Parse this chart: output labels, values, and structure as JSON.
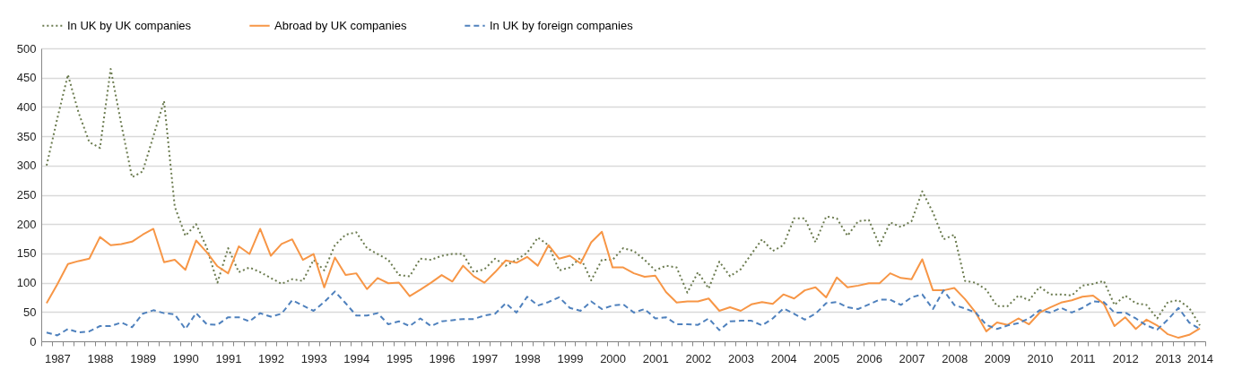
{
  "chart_data": {
    "type": "line",
    "categories": [
      null,
      "1987",
      null,
      null,
      null,
      "1988",
      null,
      null,
      null,
      "1989",
      null,
      null,
      null,
      "1990",
      null,
      null,
      null,
      "1991",
      null,
      null,
      null,
      "1992",
      null,
      null,
      null,
      "1993",
      null,
      null,
      null,
      "1994",
      null,
      null,
      null,
      "1995",
      null,
      null,
      null,
      "1996",
      null,
      null,
      null,
      "1997",
      null,
      null,
      null,
      "1998",
      null,
      null,
      null,
      "1999",
      null,
      null,
      null,
      "2000",
      null,
      null,
      null,
      "2001",
      null,
      null,
      null,
      "2002",
      null,
      null,
      null,
      "2003",
      null,
      null,
      null,
      "2004",
      null,
      null,
      null,
      "2005",
      null,
      null,
      null,
      "2006",
      null,
      null,
      null,
      "2007",
      null,
      null,
      null,
      "2008",
      null,
      null,
      null,
      "2009",
      null,
      null,
      null,
      "2010",
      null,
      null,
      null,
      "2011",
      null,
      null,
      null,
      "2012",
      null,
      null,
      null,
      "2013",
      null,
      null,
      "2014"
    ],
    "ylim": [
      0,
      500
    ],
    "yticks": [
      0,
      50,
      100,
      150,
      200,
      250,
      300,
      350,
      400,
      450,
      500
    ],
    "grid": "y",
    "legend": "top",
    "marker": "none",
    "series": [
      {
        "name": "In UK by UK companies",
        "color": "#6b7b4f",
        "line_style": "dotted",
        "values": [
          300,
          380,
          455,
          390,
          340,
          330,
          465,
          370,
          280,
          290,
          350,
          410,
          230,
          180,
          200,
          160,
          100,
          159,
          118,
          126,
          118,
          108,
          98,
          106,
          103,
          139,
          121,
          164,
          182,
          186,
          159,
          149,
          139,
          113,
          111,
          141,
          139,
          146,
          149,
          149,
          118,
          123,
          141,
          129,
          139,
          151,
          177,
          164,
          121,
          126,
          143,
          104,
          139,
          139,
          159,
          154,
          139,
          121,
          129,
          126,
          83,
          118,
          90,
          136,
          111,
          123,
          149,
          174,
          154,
          164,
          210,
          210,
          169,
          213,
          210,
          180,
          205,
          207,
          164,
          203,
          195,
          205,
          256,
          220,
          174,
          182,
          103,
          100,
          88,
          60,
          60,
          78,
          70,
          93,
          80,
          80,
          78,
          95,
          98,
          103,
          62,
          78,
          65,
          62,
          39,
          67,
          70,
          57,
          27
        ]
      },
      {
        "name": "Abroad by UK companies",
        "color": "#f79646",
        "line_style": "solid",
        "values": [
          65,
          97,
          132,
          137,
          141,
          178,
          164,
          166,
          170,
          182,
          192,
          135,
          139,
          122,
          172,
          152,
          128,
          116,
          162,
          149,
          192,
          146,
          166,
          174,
          139,
          149,
          92,
          143,
          113,
          116,
          89,
          108,
          99,
          100,
          77,
          88,
          100,
          113,
          102,
          129,
          111,
          100,
          118,
          138,
          134,
          144,
          129,
          164,
          141,
          146,
          133,
          169,
          187,
          126,
          126,
          116,
          110,
          112,
          84,
          66,
          68,
          68,
          73,
          52,
          58,
          52,
          63,
          67,
          64,
          80,
          73,
          87,
          92,
          75,
          109,
          92,
          95,
          99,
          99,
          116,
          108,
          106,
          140,
          87,
          87,
          91,
          72,
          49,
          17,
          32,
          28,
          39,
          29,
          49,
          58,
          66,
          70,
          76,
          78,
          64,
          26,
          41,
          21,
          37,
          27,
          12,
          6,
          11,
          22
        ]
      },
      {
        "name": "In UK by foreign companies",
        "color": "#4f81bd",
        "line_style": "dashed",
        "values": [
          15,
          10,
          21,
          15,
          17,
          26,
          26,
          32,
          24,
          47,
          53,
          48,
          46,
          21,
          48,
          29,
          28,
          41,
          41,
          34,
          48,
          42,
          47,
          70,
          61,
          52,
          67,
          85,
          65,
          44,
          44,
          48,
          29,
          34,
          26,
          39,
          26,
          34,
          36,
          38,
          38,
          44,
          47,
          65,
          49,
          76,
          61,
          67,
          75,
          57,
          52,
          68,
          55,
          61,
          63,
          49,
          55,
          39,
          41,
          29,
          29,
          28,
          39,
          19,
          34,
          35,
          35,
          27,
          39,
          56,
          47,
          37,
          47,
          65,
          67,
          58,
          55,
          63,
          71,
          71,
          62,
          75,
          80,
          55,
          87,
          62,
          56,
          49,
          28,
          21,
          27,
          31,
          39,
          53,
          49,
          57,
          49,
          57,
          68,
          67,
          49,
          49,
          39,
          27,
          20,
          37,
          57,
          32,
          21
        ]
      }
    ]
  }
}
